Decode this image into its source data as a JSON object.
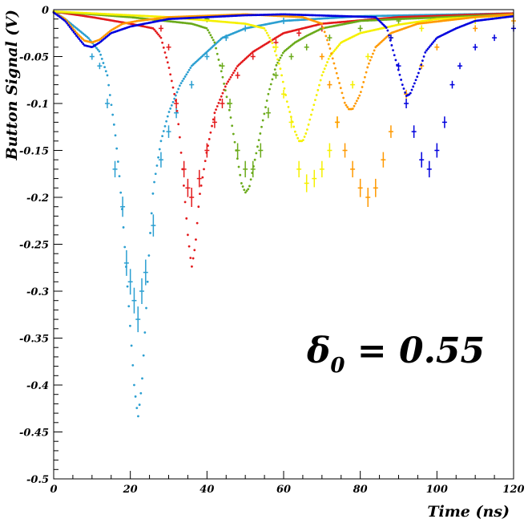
{
  "chart_data": {
    "type": "scatter",
    "xlabel": "Time (ns)",
    "ylabel": "Button Signal (V)",
    "xlim": [
      0,
      120
    ],
    "ylim": [
      -0.5,
      0
    ],
    "x_ticks": [
      0,
      20,
      40,
      60,
      80,
      100,
      120
    ],
    "x_tick_labels": [
      "0",
      "20",
      "40",
      "60",
      "80",
      "100",
      "120"
    ],
    "y_ticks": [
      0,
      -0.05,
      -0.1,
      -0.15,
      -0.2,
      -0.25,
      -0.3,
      -0.35,
      -0.4,
      -0.45,
      -0.5
    ],
    "y_tick_labels": [
      "0",
      "-0.05",
      "-0.1",
      "-0.15",
      "-0.2",
      "-0.25",
      "-0.3",
      "-0.35",
      "-0.4",
      "-0.45",
      "-0.5"
    ],
    "grid": false,
    "annotation": {
      "symbol": "δ",
      "subscript": "0",
      "text": " = 0.55"
    },
    "series": [
      {
        "color": "#2b9fd1",
        "kind": "simulation",
        "points": [
          [
            0,
            -0.002
          ],
          [
            3,
            -0.01
          ],
          [
            6,
            -0.02
          ],
          [
            9,
            -0.03
          ],
          [
            12,
            -0.045
          ],
          [
            14,
            -0.07
          ],
          [
            15,
            -0.1
          ],
          [
            16,
            -0.13
          ],
          [
            17,
            -0.17
          ],
          [
            18,
            -0.22
          ],
          [
            19,
            -0.28
          ],
          [
            20,
            -0.34
          ],
          [
            21,
            -0.4
          ],
          [
            22,
            -0.435
          ],
          [
            23,
            -0.4
          ],
          [
            24,
            -0.33
          ],
          [
            25,
            -0.25
          ],
          [
            26,
            -0.19
          ],
          [
            28,
            -0.14
          ],
          [
            30,
            -0.11
          ],
          [
            33,
            -0.08
          ],
          [
            36,
            -0.06
          ],
          [
            40,
            -0.045
          ],
          [
            44,
            -0.03
          ],
          [
            50,
            -0.02
          ],
          [
            60,
            -0.012
          ],
          [
            80,
            -0.007
          ],
          [
            120,
            -0.004
          ]
        ]
      },
      {
        "color": "#2b9fd1",
        "kind": "measurement",
        "points": [
          [
            10,
            -0.05
          ],
          [
            12,
            -0.06
          ],
          [
            14,
            -0.1
          ],
          [
            16,
            -0.17
          ],
          [
            18,
            -0.21
          ],
          [
            19,
            -0.27
          ],
          [
            20,
            -0.29
          ],
          [
            21,
            -0.31
          ],
          [
            22,
            -0.33
          ],
          [
            23,
            -0.3
          ],
          [
            24,
            -0.28
          ],
          [
            26,
            -0.23
          ],
          [
            28,
            -0.16
          ],
          [
            30,
            -0.13
          ],
          [
            32,
            -0.11
          ],
          [
            36,
            -0.08
          ],
          [
            40,
            -0.05
          ],
          [
            45,
            -0.03
          ],
          [
            50,
            -0.02
          ],
          [
            60,
            -0.012
          ]
        ]
      },
      {
        "color": "#e31a1c",
        "kind": "simulation",
        "points": [
          [
            0,
            -0.002
          ],
          [
            10,
            -0.008
          ],
          [
            20,
            -0.015
          ],
          [
            26,
            -0.02
          ],
          [
            28,
            -0.03
          ],
          [
            30,
            -0.06
          ],
          [
            32,
            -0.1
          ],
          [
            33,
            -0.14
          ],
          [
            34,
            -0.19
          ],
          [
            35,
            -0.24
          ],
          [
            36,
            -0.275
          ],
          [
            37,
            -0.25
          ],
          [
            38,
            -0.2
          ],
          [
            40,
            -0.15
          ],
          [
            42,
            -0.11
          ],
          [
            45,
            -0.08
          ],
          [
            48,
            -0.06
          ],
          [
            52,
            -0.045
          ],
          [
            56,
            -0.035
          ],
          [
            60,
            -0.025
          ],
          [
            70,
            -0.015
          ],
          [
            90,
            -0.008
          ],
          [
            120,
            -0.004
          ]
        ]
      },
      {
        "color": "#e31a1c",
        "kind": "measurement",
        "points": [
          [
            28,
            -0.02
          ],
          [
            30,
            -0.04
          ],
          [
            32,
            -0.1
          ],
          [
            34,
            -0.17
          ],
          [
            35,
            -0.19
          ],
          [
            36,
            -0.2
          ],
          [
            38,
            -0.18
          ],
          [
            40,
            -0.15
          ],
          [
            42,
            -0.12
          ],
          [
            44,
            -0.1
          ],
          [
            48,
            -0.07
          ],
          [
            52,
            -0.05
          ],
          [
            58,
            -0.035
          ],
          [
            64,
            -0.025
          ],
          [
            70,
            -0.02
          ]
        ]
      },
      {
        "color": "#6aaa1a",
        "kind": "simulation",
        "points": [
          [
            0,
            -0.002
          ],
          [
            20,
            -0.008
          ],
          [
            36,
            -0.015
          ],
          [
            40,
            -0.02
          ],
          [
            42,
            -0.035
          ],
          [
            44,
            -0.07
          ],
          [
            46,
            -0.11
          ],
          [
            48,
            -0.16
          ],
          [
            49,
            -0.185
          ],
          [
            50,
            -0.195
          ],
          [
            51,
            -0.19
          ],
          [
            52,
            -0.17
          ],
          [
            54,
            -0.13
          ],
          [
            56,
            -0.09
          ],
          [
            58,
            -0.06
          ],
          [
            60,
            -0.045
          ],
          [
            63,
            -0.035
          ],
          [
            66,
            -0.028
          ],
          [
            70,
            -0.02
          ],
          [
            80,
            -0.012
          ],
          [
            90,
            -0.01
          ],
          [
            120,
            -0.005
          ]
        ]
      },
      {
        "color": "#6aaa1a",
        "kind": "measurement",
        "points": [
          [
            40,
            -0.01
          ],
          [
            44,
            -0.06
          ],
          [
            46,
            -0.1
          ],
          [
            48,
            -0.15
          ],
          [
            50,
            -0.17
          ],
          [
            52,
            -0.17
          ],
          [
            54,
            -0.15
          ],
          [
            56,
            -0.11
          ],
          [
            58,
            -0.07
          ],
          [
            62,
            -0.05
          ],
          [
            66,
            -0.04
          ],
          [
            72,
            -0.03
          ],
          [
            80,
            -0.02
          ],
          [
            90,
            -0.012
          ]
        ]
      },
      {
        "color": "#f5f000",
        "kind": "simulation",
        "points": [
          [
            0,
            -0.002
          ],
          [
            30,
            -0.008
          ],
          [
            50,
            -0.015
          ],
          [
            55,
            -0.02
          ],
          [
            57,
            -0.035
          ],
          [
            59,
            -0.06
          ],
          [
            61,
            -0.1
          ],
          [
            63,
            -0.13
          ],
          [
            64,
            -0.14
          ],
          [
            65,
            -0.14
          ],
          [
            66,
            -0.13
          ],
          [
            68,
            -0.1
          ],
          [
            70,
            -0.07
          ],
          [
            72,
            -0.05
          ],
          [
            75,
            -0.035
          ],
          [
            80,
            -0.025
          ],
          [
            90,
            -0.016
          ],
          [
            100,
            -0.01
          ],
          [
            120,
            -0.006
          ]
        ]
      },
      {
        "color": "#f5f000",
        "kind": "measurement",
        "points": [
          [
            58,
            -0.04
          ],
          [
            60,
            -0.09
          ],
          [
            62,
            -0.12
          ],
          [
            64,
            -0.17
          ],
          [
            66,
            -0.185
          ],
          [
            68,
            -0.18
          ],
          [
            70,
            -0.17
          ],
          [
            72,
            -0.15
          ],
          [
            74,
            -0.12
          ],
          [
            78,
            -0.08
          ],
          [
            82,
            -0.05
          ],
          [
            88,
            -0.03
          ],
          [
            96,
            -0.02
          ],
          [
            110,
            -0.012
          ]
        ]
      },
      {
        "color": "#ff9900",
        "kind": "simulation",
        "points": [
          [
            0,
            -0.003
          ],
          [
            3,
            -0.01
          ],
          [
            6,
            -0.025
          ],
          [
            8,
            -0.033
          ],
          [
            10,
            -0.035
          ],
          [
            12,
            -0.032
          ],
          [
            15,
            -0.022
          ],
          [
            18,
            -0.015
          ],
          [
            22,
            -0.012
          ],
          [
            30,
            -0.008
          ],
          [
            50,
            -0.005
          ],
          [
            65,
            -0.008
          ],
          [
            70,
            -0.015
          ],
          [
            72,
            -0.04
          ],
          [
            74,
            -0.07
          ],
          [
            76,
            -0.1
          ],
          [
            77,
            -0.106
          ],
          [
            78,
            -0.106
          ],
          [
            80,
            -0.09
          ],
          [
            82,
            -0.06
          ],
          [
            84,
            -0.04
          ],
          [
            88,
            -0.025
          ],
          [
            95,
            -0.015
          ],
          [
            110,
            -0.008
          ],
          [
            120,
            -0.005
          ]
        ]
      },
      {
        "color": "#ff9900",
        "kind": "measurement",
        "points": [
          [
            70,
            -0.05
          ],
          [
            72,
            -0.08
          ],
          [
            74,
            -0.12
          ],
          [
            76,
            -0.15
          ],
          [
            78,
            -0.17
          ],
          [
            80,
            -0.19
          ],
          [
            82,
            -0.2
          ],
          [
            84,
            -0.19
          ],
          [
            86,
            -0.16
          ],
          [
            88,
            -0.13
          ],
          [
            92,
            -0.09
          ],
          [
            96,
            -0.06
          ],
          [
            100,
            -0.04
          ],
          [
            110,
            -0.02
          ],
          [
            120,
            -0.012
          ]
        ]
      },
      {
        "color": "#0000dd",
        "kind": "simulation",
        "points": [
          [
            0,
            -0.003
          ],
          [
            3,
            -0.012
          ],
          [
            6,
            -0.028
          ],
          [
            8,
            -0.038
          ],
          [
            10,
            -0.04
          ],
          [
            12,
            -0.035
          ],
          [
            15,
            -0.025
          ],
          [
            20,
            -0.018
          ],
          [
            30,
            -0.01
          ],
          [
            50,
            -0.006
          ],
          [
            60,
            -0.005
          ],
          [
            84,
            -0.008
          ],
          [
            87,
            -0.02
          ],
          [
            89,
            -0.05
          ],
          [
            91,
            -0.08
          ],
          [
            92,
            -0.092
          ],
          [
            93,
            -0.09
          ],
          [
            95,
            -0.07
          ],
          [
            97,
            -0.045
          ],
          [
            100,
            -0.03
          ],
          [
            105,
            -0.02
          ],
          [
            110,
            -0.012
          ],
          [
            120,
            -0.007
          ]
        ]
      },
      {
        "color": "#0000dd",
        "kind": "measurement",
        "points": [
          [
            88,
            -0.03
          ],
          [
            90,
            -0.06
          ],
          [
            92,
            -0.1
          ],
          [
            94,
            -0.13
          ],
          [
            96,
            -0.16
          ],
          [
            98,
            -0.17
          ],
          [
            100,
            -0.15
          ],
          [
            102,
            -0.12
          ],
          [
            104,
            -0.08
          ],
          [
            106,
            -0.06
          ],
          [
            110,
            -0.04
          ],
          [
            115,
            -0.03
          ],
          [
            120,
            -0.02
          ]
        ]
      }
    ]
  }
}
